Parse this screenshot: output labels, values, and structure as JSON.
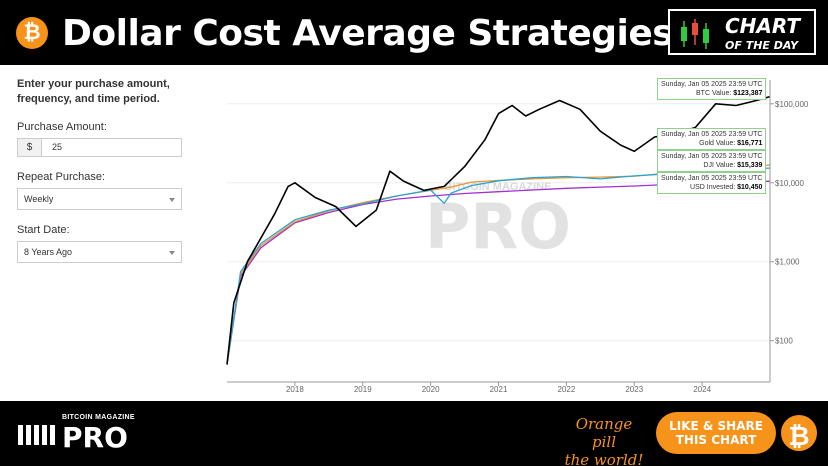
{
  "header": {
    "btc_symbol": "₿",
    "title": "Dollar Cost Average Strategies",
    "badge_line1": "CHART",
    "badge_line2": "OF THE DAY"
  },
  "form": {
    "intro": "Enter your purchase amount, frequency, and time period.",
    "amount_label": "Purchase Amount:",
    "currency_symbol": "$",
    "amount_value": "25",
    "repeat_label": "Repeat Purchase:",
    "repeat_value": "Weekly",
    "start_label": "Start Date:",
    "start_value": "8 Years Ago"
  },
  "chart_data": {
    "type": "line",
    "x_ticks": [
      "2018",
      "2019",
      "2020",
      "2021",
      "2022",
      "2023",
      "2024"
    ],
    "y_scale": "log",
    "y_ticks": [
      "$100",
      "$1,000",
      "$10,000",
      "$100,000"
    ],
    "ylim": [
      30,
      200000
    ],
    "watermark": "PRO",
    "watermark_small": "BITCOIN MAGAZINE",
    "series": [
      {
        "name": "BTC Value",
        "color": "#000000",
        "x": [
          2017.0,
          2017.1,
          2017.3,
          2017.5,
          2017.7,
          2017.9,
          2018.0,
          2018.3,
          2018.6,
          2018.9,
          2019.2,
          2019.4,
          2019.6,
          2019.9,
          2020.2,
          2020.5,
          2020.8,
          2021.0,
          2021.2,
          2021.4,
          2021.6,
          2021.9,
          2022.2,
          2022.5,
          2022.8,
          2023.0,
          2023.3,
          2023.6,
          2023.9,
          2024.2,
          2024.5,
          2024.8,
          2025.0
        ],
        "y": [
          50,
          300,
          1000,
          2000,
          4000,
          9000,
          10000,
          6500,
          5000,
          2800,
          4500,
          14000,
          10500,
          8000,
          9000,
          16000,
          35000,
          75000,
          95000,
          70000,
          85000,
          110000,
          85000,
          45000,
          30000,
          25000,
          38000,
          42000,
          50000,
          100000,
          95000,
          110000,
          123387
        ]
      },
      {
        "name": "Gold Value",
        "color": "#e8962a",
        "x": [
          2017.0,
          2017.2,
          2017.5,
          2018.0,
          2018.5,
          2019.0,
          2019.5,
          2020.0,
          2020.3,
          2020.6,
          2021.0,
          2021.5,
          2022.0,
          2022.5,
          2023.0,
          2023.5,
          2024.0,
          2024.5,
          2025.0
        ],
        "y": [
          50,
          700,
          1600,
          3200,
          4400,
          5600,
          6800,
          8000,
          8800,
          10200,
          10700,
          11200,
          11600,
          11800,
          12100,
          13300,
          14400,
          15800,
          16771
        ]
      },
      {
        "name": "DJI Value",
        "color": "#2aa3d6",
        "x": [
          2017.0,
          2017.2,
          2017.5,
          2018.0,
          2018.5,
          2019.0,
          2019.5,
          2020.0,
          2020.2,
          2020.3,
          2020.6,
          2021.0,
          2021.5,
          2022.0,
          2022.5,
          2023.0,
          2023.5,
          2024.0,
          2024.5,
          2025.0
        ],
        "y": [
          50,
          750,
          1700,
          3400,
          4500,
          5400,
          6800,
          8100,
          5500,
          7400,
          9200,
          10600,
          11600,
          12000,
          11200,
          12200,
          13000,
          14000,
          14800,
          15339
        ]
      },
      {
        "name": "USD Invested",
        "color": "#a030d0",
        "x": [
          2017.0,
          2017.2,
          2017.5,
          2018.0,
          2018.5,
          2019.0,
          2019.5,
          2020.0,
          2020.5,
          2021.0,
          2021.5,
          2022.0,
          2022.5,
          2023.0,
          2023.5,
          2024.0,
          2024.5,
          2025.0
        ],
        "y": [
          50,
          650,
          1500,
          3100,
          4200,
          5300,
          6200,
          6800,
          7300,
          7700,
          8100,
          8500,
          8800,
          9100,
          9500,
          9800,
          10100,
          10450
        ]
      }
    ],
    "tooltips": [
      {
        "date": "Sunday, Jan 05 2025 23:59 UTC",
        "label": "BTC Value:",
        "value": "$123,387"
      },
      {
        "date": "Sunday, Jan 05 2025 23:59 UTC",
        "label": "Gold Value:",
        "value": "$16,771"
      },
      {
        "date": "Sunday, Jan 05 2025 23:59 UTC",
        "label": "DJI Value:",
        "value": "$15,339"
      },
      {
        "date": "Sunday, Jan 05 2025 23:59 UTC",
        "label": "USD Invested:",
        "value": "$10,450"
      }
    ]
  },
  "footer": {
    "brand_small": "BITCOIN MAGAZINE",
    "brand_big": "PRO",
    "slogan_line1": "Orange pill",
    "slogan_line2": "the world!",
    "share_line1": "LIKE & SHARE",
    "share_line2": "THIS CHART",
    "btc_symbol": "₿"
  }
}
